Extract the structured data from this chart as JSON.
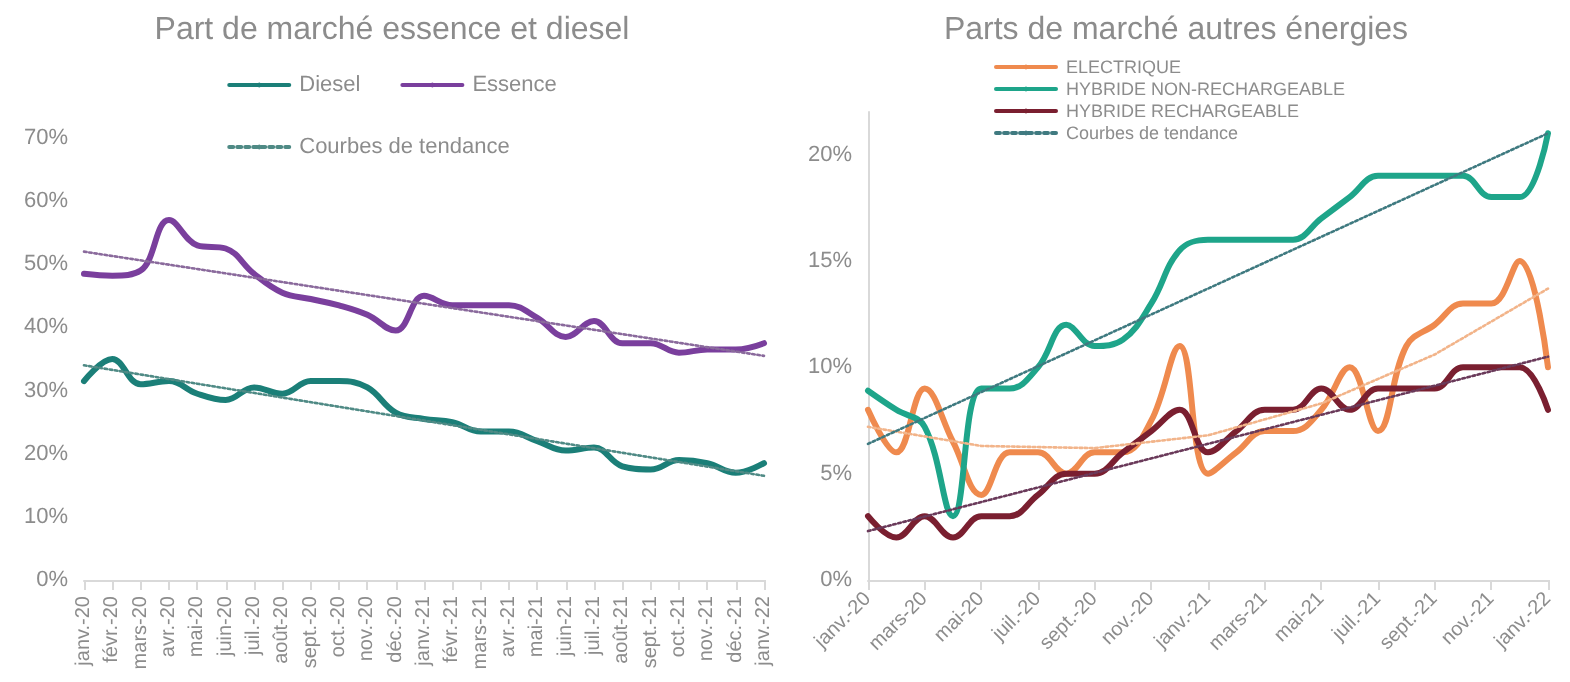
{
  "chart_data": [
    {
      "type": "line",
      "title": "Part de marché essence et diesel",
      "categories": [
        "janv.-20",
        "févr.-20",
        "mars-20",
        "avr.-20",
        "mai-20",
        "juin-20",
        "juil.-20",
        "août-20",
        "sept.-20",
        "oct.-20",
        "nov.-20",
        "déc.-20",
        "janv.-21",
        "févr.-21",
        "mars-21",
        "avr.-21",
        "mai-21",
        "juin-21",
        "juil.-21",
        "août-21",
        "sept.-21",
        "oct.-21",
        "nov.-21",
        "déc.-21",
        "janv.-22"
      ],
      "series": [
        {
          "name": "Diesel",
          "color": "#1b7f78",
          "values": [
            31.5,
            35,
            31,
            31.5,
            29.5,
            28.5,
            30.5,
            29.5,
            31.5,
            31.5,
            30.5,
            26.5,
            25.5,
            25,
            23.5,
            23.5,
            22,
            20.5,
            21,
            18,
            17.5,
            19,
            18.5,
            17,
            18.5
          ]
        },
        {
          "name": "Essence",
          "color": "#7a3f9d",
          "values": [
            48.5,
            48.2,
            49,
            57,
            53,
            52.5,
            48.5,
            45.5,
            44.5,
            43.5,
            42,
            39.5,
            45,
            43.5,
            43.5,
            43.5,
            41.5,
            38.5,
            41,
            37.5,
            37.5,
            36,
            36.5,
            36.5,
            37.5
          ]
        },
        {
          "name": "Courbes de tendance",
          "color": "#4f8a85",
          "line_style": "dotted",
          "values": [
            34,
            null,
            null,
            null,
            null,
            null,
            null,
            null,
            null,
            null,
            null,
            null,
            null,
            null,
            null,
            null,
            null,
            null,
            null,
            null,
            null,
            null,
            null,
            null,
            16.5
          ]
        },
        {
          "color": "#8a6a9c",
          "line_style": "dotted",
          "values": [
            52,
            null,
            null,
            null,
            null,
            null,
            null,
            null,
            null,
            null,
            null,
            null,
            null,
            null,
            null,
            null,
            null,
            null,
            null,
            null,
            null,
            null,
            null,
            null,
            35.5
          ]
        }
      ],
      "ylim": [
        0,
        70
      ],
      "yticks": [
        {
          "value": 0,
          "label": "0%"
        },
        {
          "value": 10,
          "label": "10%"
        },
        {
          "value": 20,
          "label": "20%"
        },
        {
          "value": 30,
          "label": "30%"
        },
        {
          "value": 40,
          "label": "40%"
        },
        {
          "value": 50,
          "label": "50%"
        },
        {
          "value": 60,
          "label": "60%"
        },
        {
          "value": 70,
          "label": "70%"
        }
      ],
      "grid": false,
      "legend": "top",
      "marker": "none"
    },
    {
      "type": "line",
      "title": "Parts de marché autres énergies",
      "categories": [
        "janv.-20",
        null,
        "mars-20",
        null,
        "mai-20",
        null,
        "juil.-20",
        null,
        "sept.-20",
        null,
        "nov.-20",
        null,
        "janv.-21",
        null,
        "mars-21",
        null,
        "mai-21",
        null,
        "juil.-21",
        null,
        "sept.-21",
        null,
        "nov.-21",
        null,
        "janv.-22"
      ],
      "series": [
        {
          "name": "ELECTRIQUE",
          "color": "#ef8a4e",
          "values": [
            8,
            6,
            9,
            6.5,
            4,
            6,
            6,
            5,
            6,
            6,
            7.5,
            11,
            5,
            6,
            7,
            7,
            8,
            10,
            7,
            11,
            12,
            13,
            13,
            15,
            10
          ]
        },
        {
          "name": "HYBRIDE NON-RECHARGEABLE",
          "color": "#1ea58a",
          "values": [
            8.9,
            8,
            7.2,
            3,
            9,
            9,
            10,
            12,
            11,
            11.3,
            13,
            15.5,
            16,
            16,
            16,
            16,
            17,
            18,
            19,
            19,
            19,
            19,
            18,
            18,
            21
          ]
        },
        {
          "name": "HYBRIDE RECHARGEABLE",
          "color": "#7a1f30",
          "values": [
            3,
            2,
            3,
            2,
            3,
            3,
            4,
            5,
            5,
            6,
            7,
            8,
            6,
            7,
            8,
            8,
            9,
            8,
            9,
            9,
            9,
            10,
            10,
            10,
            8
          ]
        },
        {
          "color": "#f2b48a",
          "line_style": "dotted",
          "values": [
            7.2,
            null,
            null,
            null,
            6.3,
            null,
            null,
            null,
            6.2,
            null,
            null,
            null,
            6.8,
            null,
            null,
            null,
            8.3,
            null,
            null,
            null,
            10.6,
            null,
            null,
            null,
            13.7
          ]
        },
        {
          "name": "Courbes de tendance",
          "color": "#3f7a80",
          "line_style": "dotted",
          "values": [
            6.4,
            null,
            null,
            null,
            null,
            null,
            null,
            null,
            null,
            null,
            null,
            null,
            null,
            null,
            null,
            null,
            null,
            null,
            null,
            null,
            null,
            null,
            null,
            null,
            21
          ]
        },
        {
          "color": "#6a3a5a",
          "line_style": "dotted",
          "values": [
            2.3,
            null,
            null,
            null,
            null,
            null,
            null,
            null,
            null,
            null,
            null,
            null,
            null,
            null,
            null,
            null,
            null,
            null,
            null,
            null,
            null,
            null,
            null,
            null,
            10.5
          ]
        }
      ],
      "ylim": [
        0,
        22
      ],
      "yticks": [
        {
          "value": 0,
          "label": "0%"
        },
        {
          "value": 5,
          "label": "5%"
        },
        {
          "value": 10,
          "label": "10%"
        },
        {
          "value": 15,
          "label": "15%"
        },
        {
          "value": 20,
          "label": "20%"
        }
      ],
      "grid": false,
      "legend": "top",
      "marker": "none"
    }
  ]
}
